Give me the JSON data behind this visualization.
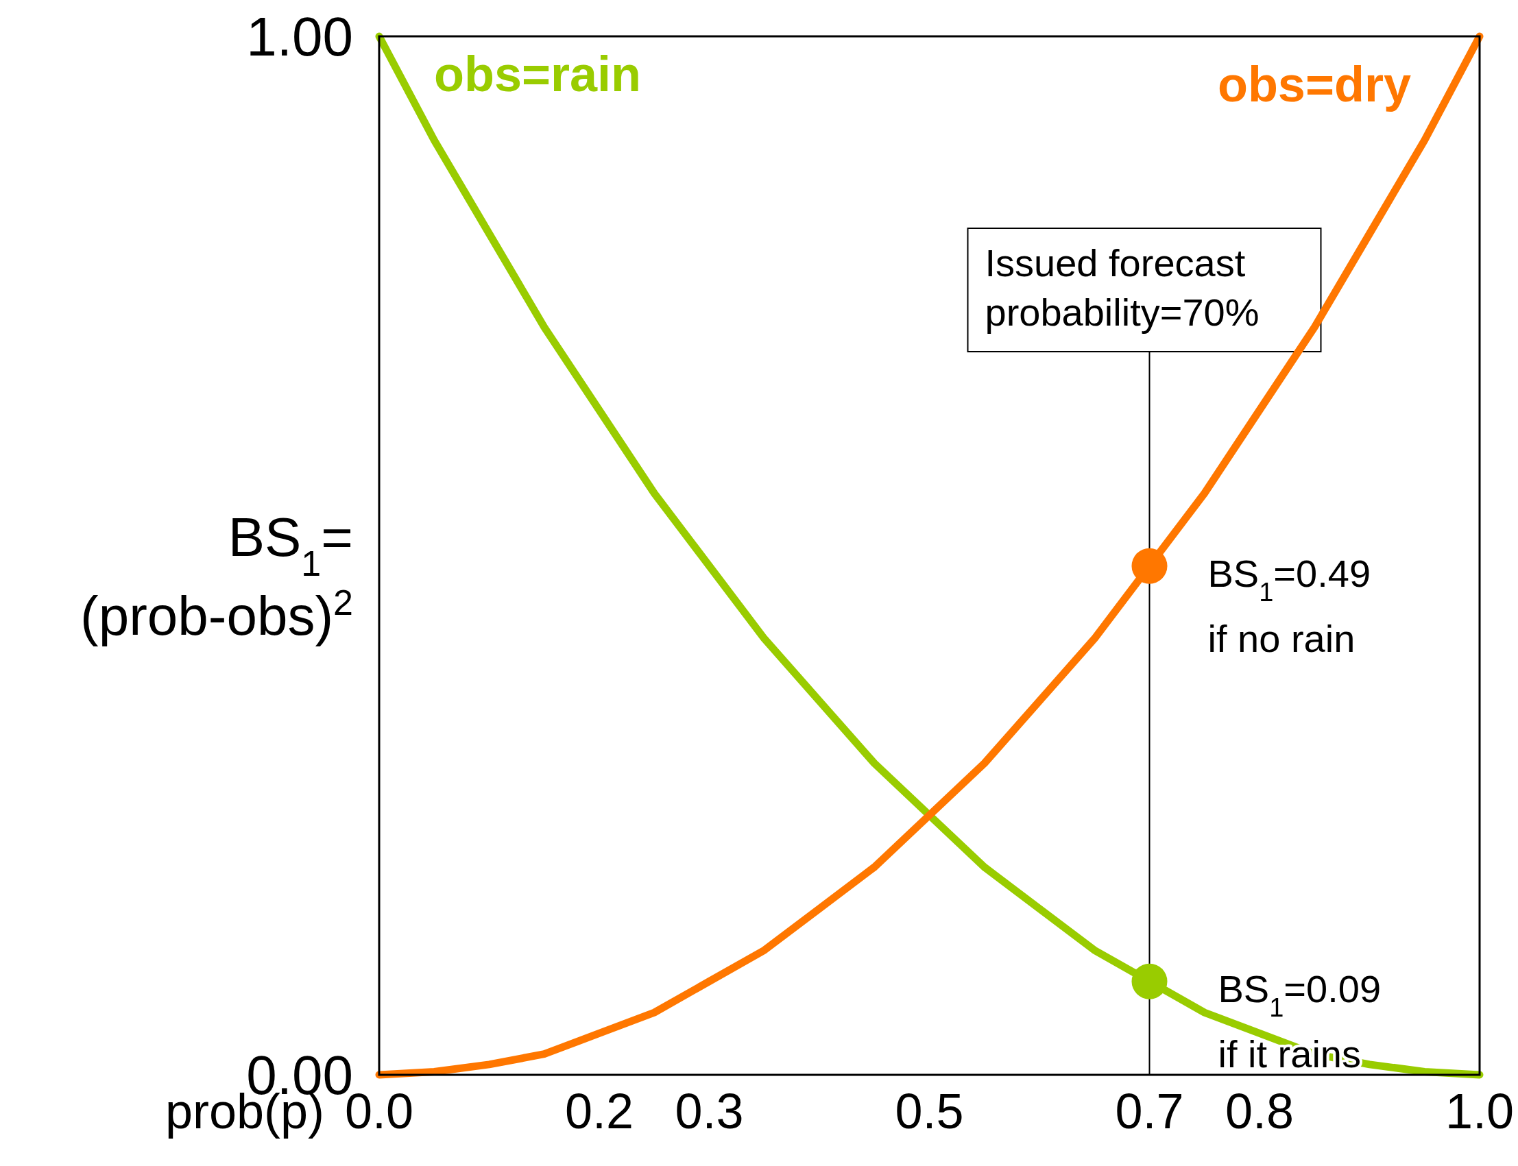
{
  "chart_data": {
    "type": "line",
    "xlabel": "prob(p)",
    "ylabel": "BS$_{1}$=\n(prob-obs)$^{2}$",
    "xlim": [
      0,
      1
    ],
    "ylim": [
      0,
      1
    ],
    "xticks": [
      {
        "value": 0,
        "label": "0.0"
      },
      0.2,
      0.3,
      0.5,
      0.7,
      0.8,
      {
        "value": 1,
        "label": "1.0"
      }
    ],
    "yticks": [
      {
        "value": 0,
        "label": "0.00"
      },
      {
        "value": 1,
        "label": "1.00"
      }
    ],
    "x": [
      0,
      0.05,
      0.1,
      0.15,
      0.2,
      0.25,
      0.3,
      0.35,
      0.4,
      0.45,
      0.5,
      0.55,
      0.6,
      0.65,
      0.7,
      0.75,
      0.8,
      0.85,
      0.9,
      0.95,
      1
    ],
    "series": [
      {
        "name": "obs=rain",
        "color": "#99cc00",
        "values": [
          1,
          0.9,
          0.81,
          0.72,
          0.64,
          0.56,
          0.49,
          0.42,
          0.36,
          0.3,
          0.25,
          0.2,
          0.16,
          0.12,
          0.09,
          0.06,
          0.04,
          0.02,
          0.01,
          0.003,
          0
        ]
      },
      {
        "name": "obs=dry",
        "color": "#ff7700",
        "values": [
          0,
          0.003,
          0.01,
          0.02,
          0.04,
          0.06,
          0.09,
          0.12,
          0.16,
          0.2,
          0.25,
          0.3,
          0.36,
          0.42,
          0.49,
          0.56,
          0.64,
          0.72,
          0.81,
          0.9,
          1
        ]
      },
      {
        "type": "scatter",
        "color": "#ff7700",
        "x": [
          0.7
        ],
        "values": [
          0.49
        ]
      },
      {
        "type": "scatter",
        "color": "#99cc00",
        "x": [
          0.7
        ],
        "values": [
          0.09
        ]
      }
    ],
    "ref_lines": [
      {
        "axis": "x",
        "value": 0.7,
        "label": "Issued forecast\nprobability=70%",
        "color": "#000000"
      }
    ],
    "annotations": [
      {
        "text": "BS$_{1}$=0.49\nif no rain",
        "x": 0.7,
        "y": 0.49
      },
      {
        "text": "BS$_{1}$=0.09\nif it rains",
        "x": 0.7,
        "y": 0.09
      }
    ]
  }
}
